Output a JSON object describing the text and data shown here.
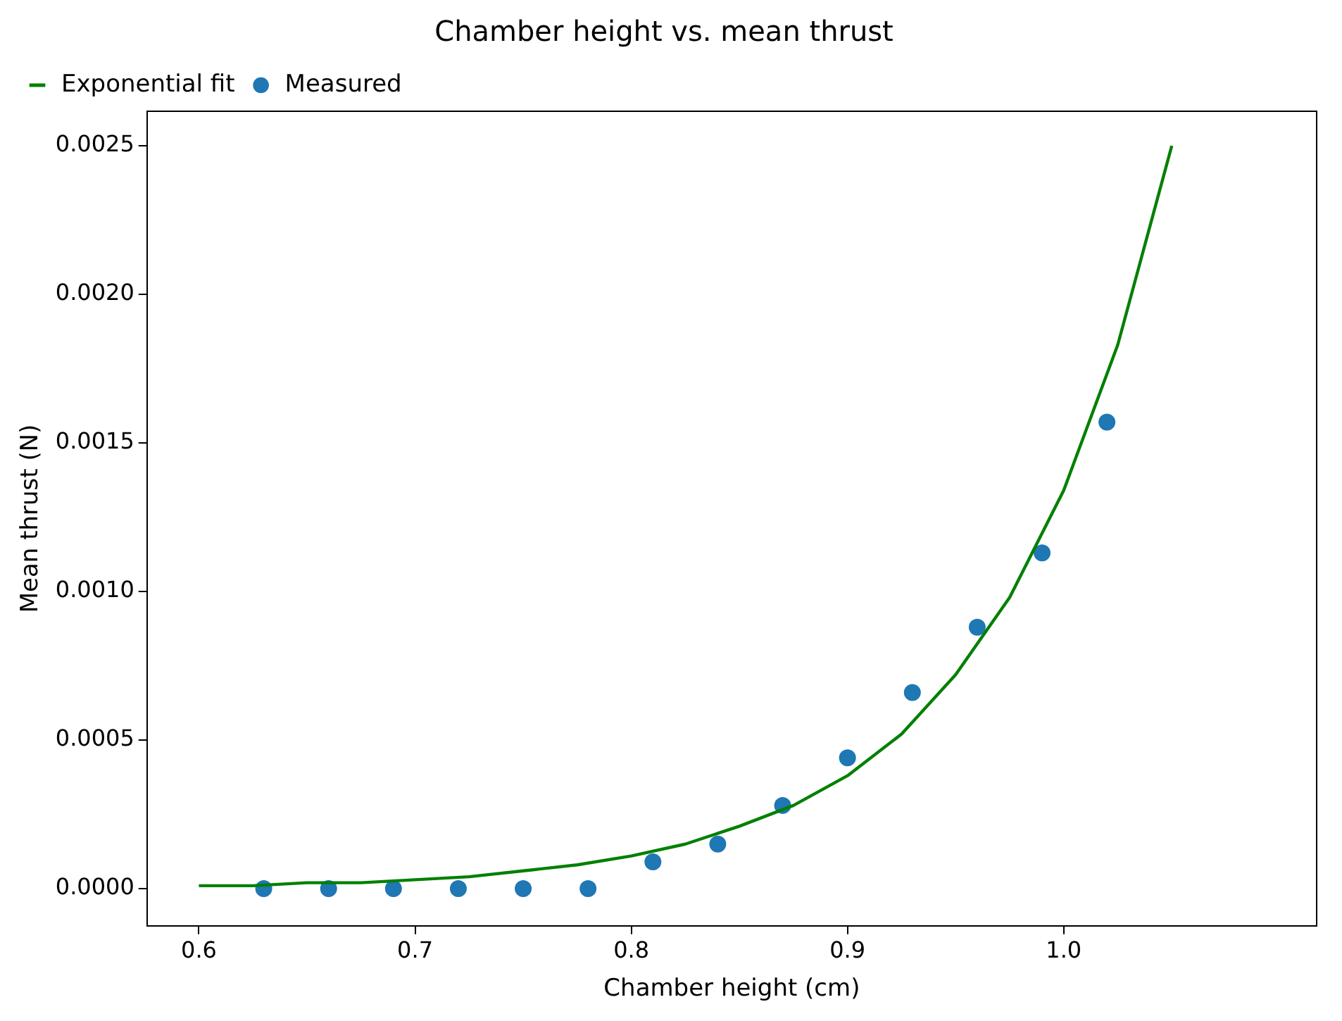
{
  "chart_data": {
    "type": "scatter",
    "title": "Chamber height vs. mean thrust",
    "xlabel": "Chamber height (cm)",
    "ylabel": "Mean thrust (N)",
    "xlim": [
      0.576,
      1.117
    ],
    "xticks": [
      {
        "value": 0.6,
        "label": "0.6"
      },
      {
        "value": 0.7,
        "label": "0.7"
      },
      {
        "value": 0.8,
        "label": "0.8"
      },
      {
        "value": 0.9,
        "label": "0.9"
      },
      {
        "value": 1.0,
        "label": "1.0"
      }
    ],
    "ylim": [
      -0.000125,
      0.002616
    ],
    "yticks": [
      {
        "value": 0,
        "label": "0.0000"
      },
      {
        "value": 0.0005,
        "label": "0.0005"
      },
      {
        "value": 0.001,
        "label": "0.0010"
      },
      {
        "value": 0.0015,
        "label": "0.0015"
      },
      {
        "value": 0.002,
        "label": "0.0020"
      },
      {
        "value": 0.0025,
        "label": "0.0025"
      }
    ],
    "grid": false,
    "legend": "top left",
    "series": [
      {
        "name": "Exponential fit",
        "type": "line",
        "color": "#008000",
        "marker": "none",
        "line_style": "solid",
        "x": [
          0.6,
          0.625,
          0.65,
          0.675,
          0.7,
          0.725,
          0.75,
          0.775,
          0.8,
          0.825,
          0.85,
          0.875,
          0.9,
          0.925,
          0.95,
          0.975,
          1.0,
          1.025,
          1.05
        ],
        "values": [
          1e-05,
          1e-05,
          2e-05,
          2e-05,
          3e-05,
          4e-05,
          6e-05,
          8e-05,
          0.00011,
          0.00015,
          0.00021,
          0.00028,
          0.00038,
          0.00052,
          0.00072,
          0.00098,
          0.00134,
          0.00183,
          0.0025
        ]
      },
      {
        "name": "Measured",
        "color": "#1f77b4",
        "marker": "circle",
        "x": [
          0.63,
          0.66,
          0.69,
          0.72,
          0.75,
          0.78,
          0.81,
          0.84,
          0.87,
          0.9,
          0.93,
          0.96,
          0.99,
          1.02
        ],
        "values": [
          0.0,
          0.0,
          0.0,
          0.0,
          0.0,
          0.0,
          9e-05,
          0.00015,
          0.00028,
          0.00044,
          0.00066,
          0.00088,
          0.00113,
          0.00157
        ]
      }
    ]
  }
}
